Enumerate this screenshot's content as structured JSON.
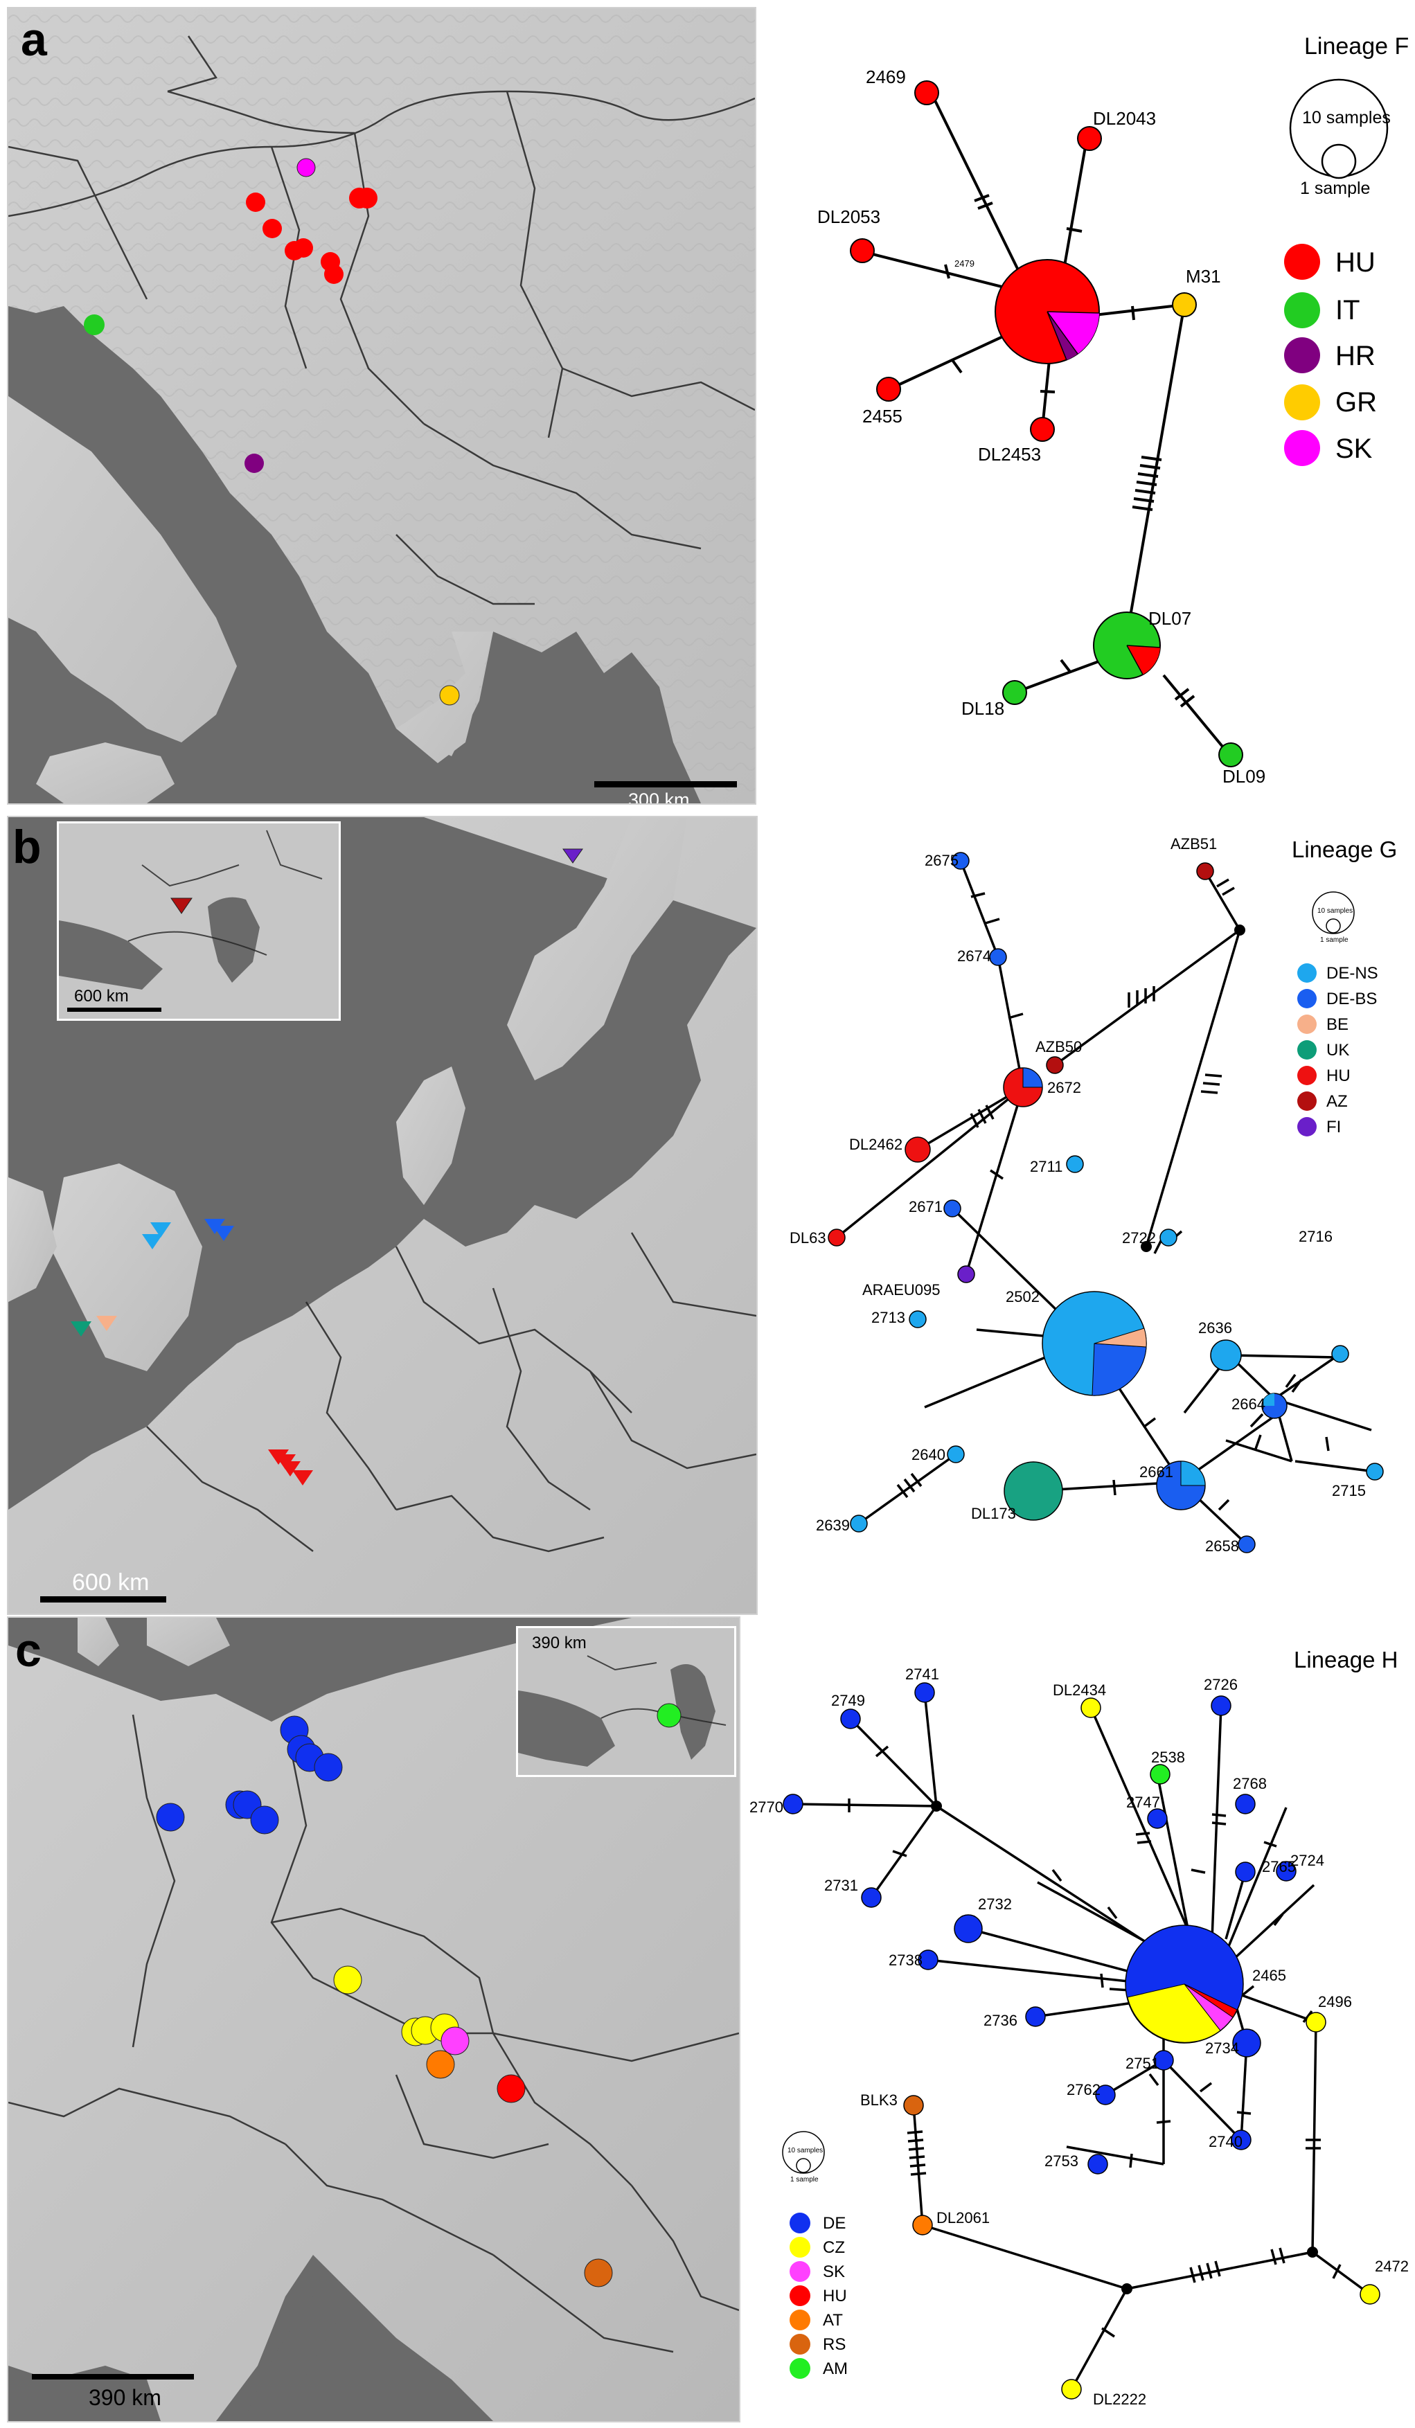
{
  "panels": [
    {
      "letter": "a",
      "scale_label": "300 km",
      "lineage_title": "Lineage F",
      "size_legend": {
        "big": "10 samples",
        "small": "1 sample"
      },
      "legend": [
        {
          "code": "HU",
          "color": "#ff0000"
        },
        {
          "code": "IT",
          "color": "#22cc22"
        },
        {
          "code": "HR",
          "color": "#800080"
        },
        {
          "code": "GR",
          "color": "#ffcc00"
        },
        {
          "code": "SK",
          "color": "#ff00ff"
        }
      ],
      "nodes": [
        {
          "id": "2469",
          "label": "2469",
          "color": "#ff0000"
        },
        {
          "id": "DL2043",
          "label": "DL2043",
          "color": "#ff0000"
        },
        {
          "id": "DL2053",
          "label": "DL2053",
          "color": "#ff0000"
        },
        {
          "id": "2479",
          "label": "2479",
          "color": "#ff0000"
        },
        {
          "id": "M31",
          "label": "M31",
          "color": "#ffcc00"
        },
        {
          "id": "2455",
          "label": "2455",
          "color": "#ff0000"
        },
        {
          "id": "DL2453",
          "label": "DL2453",
          "color": "#ff0000"
        },
        {
          "id": "DL07",
          "label": "DL07",
          "color": "#22cc22"
        },
        {
          "id": "DL18",
          "label": "DL18",
          "color": "#22cc22"
        },
        {
          "id": "DL09",
          "label": "DL09",
          "color": "#22cc22"
        }
      ]
    },
    {
      "letter": "b",
      "scale_label": "600 km",
      "inset_scale_label": "600 km",
      "lineage_title": "Lineage G",
      "size_legend": {
        "big": "10 samples",
        "small": "1 sample"
      },
      "legend": [
        {
          "code": "DE-NS",
          "color": "#1ea7ee"
        },
        {
          "code": "DE-BS",
          "color": "#1a5ef0"
        },
        {
          "code": "BE",
          "color": "#f7b08a"
        },
        {
          "code": "UK",
          "color": "#0d9d78"
        },
        {
          "code": "HU",
          "color": "#ee1111"
        },
        {
          "code": "AZ",
          "color": "#b30f0f"
        },
        {
          "code": "FI",
          "color": "#6a1fc9"
        }
      ],
      "nodes": [
        {
          "id": "2675",
          "label": "2675"
        },
        {
          "id": "AZB51",
          "label": "AZB51"
        },
        {
          "id": "2674",
          "label": "2674"
        },
        {
          "id": "AZB50",
          "label": "AZB50"
        },
        {
          "id": "DL2462",
          "label": "DL2462"
        },
        {
          "id": "2672",
          "label": "2672"
        },
        {
          "id": "DL63",
          "label": "DL63"
        },
        {
          "id": "ARAEU095",
          "label": "ARAEU095"
        },
        {
          "id": "2711",
          "label": "2711"
        },
        {
          "id": "2671",
          "label": "2671"
        },
        {
          "id": "2722",
          "label": "2722"
        },
        {
          "id": "2716",
          "label": "2716"
        },
        {
          "id": "2502",
          "label": "2502"
        },
        {
          "id": "2636",
          "label": "2636"
        },
        {
          "id": "2713",
          "label": "2713"
        },
        {
          "id": "2664",
          "label": "2664"
        },
        {
          "id": "2640",
          "label": "2640"
        },
        {
          "id": "2715",
          "label": "2715"
        },
        {
          "id": "2661",
          "label": "2661"
        },
        {
          "id": "DL173",
          "label": "DL173"
        },
        {
          "id": "2639",
          "label": "2639"
        },
        {
          "id": "2658",
          "label": "2658"
        }
      ]
    },
    {
      "letter": "c",
      "scale_label": "390 km",
      "inset_scale_label": "390 km",
      "lineage_title": "Lineage H",
      "size_legend": {
        "big": "10 samples",
        "small": "1 sample"
      },
      "legend": [
        {
          "code": "DE",
          "color": "#1030f0"
        },
        {
          "code": "CZ",
          "color": "#ffff00"
        },
        {
          "code": "SK",
          "color": "#ff40ff"
        },
        {
          "code": "HU",
          "color": "#ff0000"
        },
        {
          "code": "AT",
          "color": "#ff7a00"
        },
        {
          "code": "RS",
          "color": "#d9640f"
        },
        {
          "code": "AM",
          "color": "#22ee22"
        }
      ],
      "nodes": [
        {
          "id": "2741",
          "label": "2741"
        },
        {
          "id": "DL2434",
          "label": "DL2434"
        },
        {
          "id": "2726",
          "label": "2726"
        },
        {
          "id": "2749",
          "label": "2749"
        },
        {
          "id": "2538",
          "label": "2538"
        },
        {
          "id": "2768",
          "label": "2768"
        },
        {
          "id": "2770",
          "label": "2770"
        },
        {
          "id": "2747",
          "label": "2747"
        },
        {
          "id": "2724",
          "label": "2724"
        },
        {
          "id": "2765",
          "label": "2765"
        },
        {
          "id": "2731",
          "label": "2731"
        },
        {
          "id": "2732",
          "label": "2732"
        },
        {
          "id": "2465",
          "label": "2465"
        },
        {
          "id": "2738",
          "label": "2738"
        },
        {
          "id": "2496",
          "label": "2496"
        },
        {
          "id": "2736",
          "label": "2736"
        },
        {
          "id": "2734",
          "label": "2734"
        },
        {
          "id": "2762",
          "label": "2762"
        },
        {
          "id": "2751",
          "label": "2751"
        },
        {
          "id": "BLK3",
          "label": "BLK3"
        },
        {
          "id": "2753",
          "label": "2753"
        },
        {
          "id": "2740",
          "label": "2740"
        },
        {
          "id": "DL2061",
          "label": "DL2061"
        },
        {
          "id": "2472",
          "label": "2472"
        },
        {
          "id": "DL2222",
          "label": "DL2222"
        }
      ]
    }
  ]
}
